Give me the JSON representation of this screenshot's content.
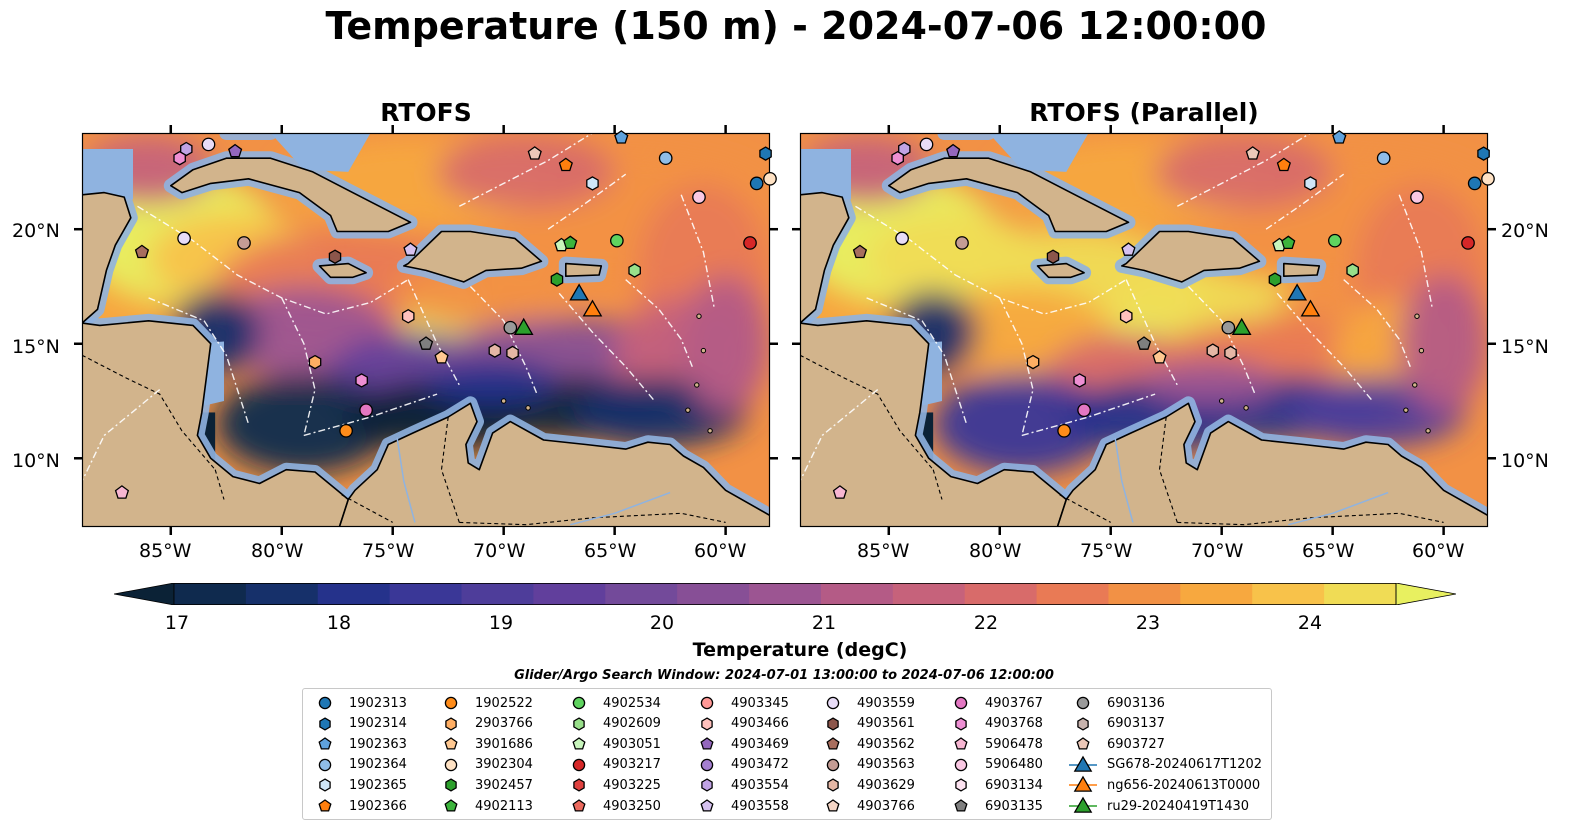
{
  "title": "Temperature (150 m) - 2024-07-06 12:00:00",
  "panels": [
    {
      "id": "rtofs",
      "title": "RTOFS"
    },
    {
      "id": "rtofs-parallel",
      "title": "RTOFS (Parallel)"
    }
  ],
  "map": {
    "lon_range": [
      -89,
      -58
    ],
    "lat_range": [
      7,
      24.2
    ],
    "lon_ticks": [
      "85°W",
      "80°W",
      "75°W",
      "70°W",
      "65°W",
      "60°W"
    ],
    "lon_tick_values": [
      -85,
      -80,
      -75,
      -70,
      -65,
      -60
    ],
    "lat_ticks": [
      "20°N",
      "15°N",
      "10°N"
    ],
    "lat_tick_values": [
      20,
      15,
      10
    ],
    "colors": {
      "land": "#d2b48c",
      "shallow_water": "#8fb3e0",
      "eez_lines": "#ffffff",
      "coastline": "#000000"
    }
  },
  "colorbar": {
    "label": "Temperature (degC)",
    "min": 16.5,
    "max": 24.5,
    "step": 0.5,
    "tick_labels": [
      "17",
      "18",
      "19",
      "20",
      "21",
      "22",
      "23",
      "24"
    ],
    "tick_values": [
      17,
      18,
      19,
      20,
      21,
      22,
      23,
      24
    ],
    "extend": "both",
    "colors": [
      "#0b2236",
      "#0f2a4e",
      "#16306a",
      "#25328b",
      "#3a3797",
      "#4e3d9a",
      "#613f9c",
      "#734a9a",
      "#874f96",
      "#9c5592",
      "#b45b86",
      "#c6627b",
      "#d86b6a",
      "#e97a55",
      "#f29145",
      "#f7a83f",
      "#f8c24a",
      "#f0dc55",
      "#e8f060"
    ]
  },
  "search_window": "Glider/Argo Search Window: 2024-07-01 13:00:00 to 2024-07-06 12:00:00",
  "legend": [
    {
      "label": "1902313",
      "marker": "circle",
      "color": "#1f77b4"
    },
    {
      "label": "1902314",
      "marker": "hexagon",
      "color": "#1f77b4"
    },
    {
      "label": "1902363",
      "marker": "pentagon",
      "color": "#5fa2dd"
    },
    {
      "label": "1902364",
      "marker": "circle",
      "color": "#8fbde8"
    },
    {
      "label": "1902365",
      "marker": "hexagon",
      "color": "#cfe6f7"
    },
    {
      "label": "1902366",
      "marker": "pentagon",
      "color": "#ff7f0e"
    },
    {
      "label": "1902522",
      "marker": "circle",
      "color": "#ff8c1a"
    },
    {
      "label": "2903766",
      "marker": "hexagon",
      "color": "#ffae63"
    },
    {
      "label": "3901686",
      "marker": "pentagon",
      "color": "#ffc891"
    },
    {
      "label": "3902304",
      "marker": "circle",
      "color": "#ffe2c4"
    },
    {
      "label": "3902457",
      "marker": "hexagon",
      "color": "#2ca02c"
    },
    {
      "label": "4902113",
      "marker": "pentagon",
      "color": "#3cb43c"
    },
    {
      "label": "4902534",
      "marker": "circle",
      "color": "#5fd35f"
    },
    {
      "label": "4902609",
      "marker": "hexagon",
      "color": "#98df8a"
    },
    {
      "label": "4903051",
      "marker": "pentagon",
      "color": "#c8f5bc"
    },
    {
      "label": "4903217",
      "marker": "circle",
      "color": "#d62728"
    },
    {
      "label": "4903225",
      "marker": "hexagon",
      "color": "#e0413f"
    },
    {
      "label": "4903250",
      "marker": "pentagon",
      "color": "#ec6a5e"
    },
    {
      "label": "4903345",
      "marker": "circle",
      "color": "#ff9896"
    },
    {
      "label": "4903466",
      "marker": "hexagon",
      "color": "#ffc1bd"
    },
    {
      "label": "4903469",
      "marker": "pentagon",
      "color": "#9467bd"
    },
    {
      "label": "4903472",
      "marker": "circle",
      "color": "#a47fd0"
    },
    {
      "label": "4903554",
      "marker": "hexagon",
      "color": "#c0a3e4"
    },
    {
      "label": "4903558",
      "marker": "pentagon",
      "color": "#d6c2f0"
    },
    {
      "label": "4903559",
      "marker": "circle",
      "color": "#e8dcf7"
    },
    {
      "label": "4903561",
      "marker": "hexagon",
      "color": "#8c564b"
    },
    {
      "label": "4903562",
      "marker": "pentagon",
      "color": "#a86e5e"
    },
    {
      "label": "4903563",
      "marker": "circle",
      "color": "#c49c94"
    },
    {
      "label": "4903629",
      "marker": "hexagon",
      "color": "#e5b7a5"
    },
    {
      "label": "4903766",
      "marker": "pentagon",
      "color": "#f5d6c6"
    },
    {
      "label": "4903767",
      "marker": "circle",
      "color": "#e377c2"
    },
    {
      "label": "4903768",
      "marker": "hexagon",
      "color": "#ee8fd3"
    },
    {
      "label": "5906478",
      "marker": "pentagon",
      "color": "#f7b6d2"
    },
    {
      "label": "5906480",
      "marker": "circle",
      "color": "#fac8e3"
    },
    {
      "label": "6903134",
      "marker": "hexagon",
      "color": "#fde3f1"
    },
    {
      "label": "6903135",
      "marker": "pentagon",
      "color": "#7f7f7f"
    },
    {
      "label": "6903136",
      "marker": "circle",
      "color": "#9a9a9a"
    },
    {
      "label": "6903137",
      "marker": "hexagon",
      "color": "#c7b3ad"
    },
    {
      "label": "6903727",
      "marker": "pentagon",
      "color": "#ecc8b8"
    },
    {
      "label": "SG678-20240617T1202",
      "marker": "triangle",
      "color": "#1f77b4"
    },
    {
      "label": "ng656-20240613T0000",
      "marker": "triangle",
      "color": "#ff7f0e"
    },
    {
      "label": "ru29-20240419T1430",
      "marker": "triangle",
      "color": "#2ca02c"
    }
  ],
  "floats": [
    {
      "label": "1902363",
      "lon": -64.7,
      "lat": 24.0
    },
    {
      "label": "1902314",
      "lon": -58.2,
      "lat": 23.3
    },
    {
      "label": "1902313",
      "lon": -58.6,
      "lat": 22.0
    },
    {
      "label": "3902304",
      "lon": -58.0,
      "lat": 22.2
    },
    {
      "label": "4903554",
      "lon": -84.3,
      "lat": 23.5
    },
    {
      "label": "4903768",
      "lon": -84.6,
      "lat": 23.1
    },
    {
      "label": "4903559",
      "lon": -83.3,
      "lat": 23.7
    },
    {
      "label": "4903469",
      "lon": -82.1,
      "lat": 23.4
    },
    {
      "label": "6903727",
      "lon": -68.6,
      "lat": 23.3
    },
    {
      "label": "1902366",
      "lon": -67.2,
      "lat": 22.8
    },
    {
      "label": "1902364",
      "lon": -62.7,
      "lat": 23.1
    },
    {
      "label": "1902365",
      "lon": -66.0,
      "lat": 22.0
    },
    {
      "label": "5906480",
      "lon": -61.2,
      "lat": 21.4
    },
    {
      "label": "4903559",
      "lon": -84.4,
      "lat": 19.6
    },
    {
      "label": "4903562",
      "lon": -86.3,
      "lat": 19.0
    },
    {
      "label": "4903563",
      "lon": -81.7,
      "lat": 19.4
    },
    {
      "label": "4903558",
      "lon": -74.2,
      "lat": 19.1
    },
    {
      "label": "4903561",
      "lon": -77.6,
      "lat": 18.8
    },
    {
      "label": "4903051",
      "lon": -67.4,
      "lat": 19.3
    },
    {
      "label": "4902113",
      "lon": -67.0,
      "lat": 19.4
    },
    {
      "label": "4902534",
      "lon": -64.9,
      "lat": 19.5
    },
    {
      "label": "4903217",
      "lon": -58.9,
      "lat": 19.4
    },
    {
      "label": "4902609",
      "lon": -64.1,
      "lat": 18.2
    },
    {
      "label": "3902457",
      "lon": -67.6,
      "lat": 17.8
    },
    {
      "label": "4903466",
      "lon": -74.3,
      "lat": 16.2
    },
    {
      "label": "6903136",
      "lon": -69.7,
      "lat": 15.7
    },
    {
      "label": "6903135",
      "lon": -73.5,
      "lat": 15.0
    },
    {
      "label": "3901686",
      "lon": -72.8,
      "lat": 14.4
    },
    {
      "label": "4903629",
      "lon": -70.4,
      "lat": 14.7
    },
    {
      "label": "4903629",
      "lon": -69.6,
      "lat": 14.6
    },
    {
      "label": "2903766",
      "lon": -78.5,
      "lat": 14.2
    },
    {
      "label": "4903768",
      "lon": -76.4,
      "lat": 13.4
    },
    {
      "label": "4903767",
      "lon": -76.2,
      "lat": 12.1
    },
    {
      "label": "1902522",
      "lon": -77.1,
      "lat": 11.2
    },
    {
      "label": "5906478",
      "lon": -87.2,
      "lat": 8.5
    }
  ],
  "gliders": [
    {
      "label": "SG678-20240617T1202",
      "lon": -66.6,
      "lat": 17.2
    },
    {
      "label": "ng656-20240613T0000",
      "lon": -66.0,
      "lat": 16.5
    },
    {
      "label": "ru29-20240419T1430",
      "lon": -69.1,
      "lat": 15.7
    }
  ]
}
